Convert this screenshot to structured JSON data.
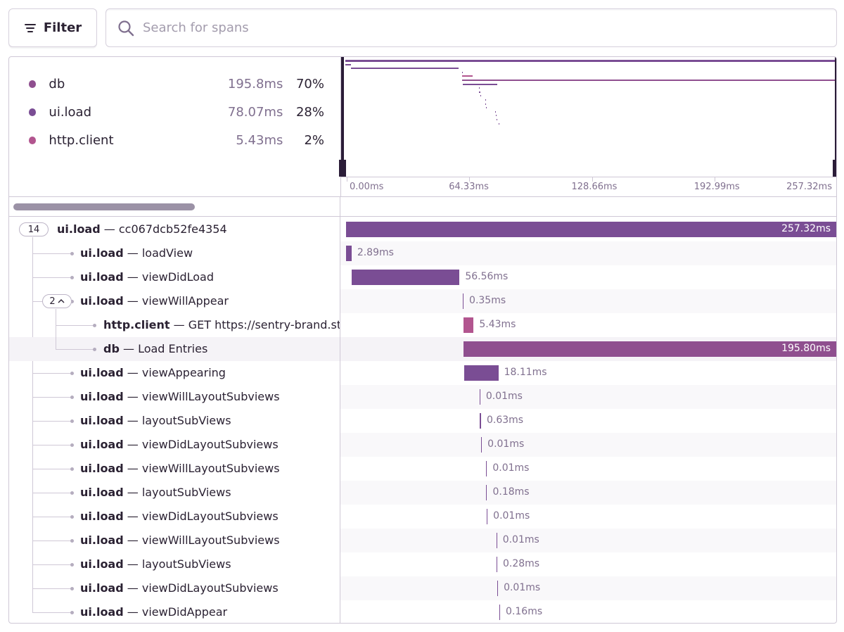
{
  "toolbar": {
    "filter_label": "Filter",
    "search_placeholder": "Search for spans"
  },
  "legend": [
    {
      "name": "db",
      "duration": "195.8ms",
      "percent": "70%",
      "color": "#8f4f8f"
    },
    {
      "name": "ui.load",
      "duration": "78.07ms",
      "percent": "28%",
      "color": "#7a4d94"
    },
    {
      "name": "http.client",
      "duration": "5.43ms",
      "percent": "2%",
      "color": "#b2558f"
    }
  ],
  "axis": {
    "ticks": [
      {
        "label": "0.00ms",
        "value": 0
      },
      {
        "label": "64.33ms",
        "value": 64.33
      },
      {
        "label": "128.66ms",
        "value": 128.66
      },
      {
        "label": "192.99ms",
        "value": 192.99
      },
      {
        "label": "257.32ms",
        "value": 257.32
      }
    ],
    "total": 257.32
  },
  "root": {
    "count": "14",
    "op": "ui.load",
    "sep": " — ",
    "desc": "cc067dcb52fe4354",
    "start": 0,
    "duration": 257.32,
    "duration_label": "257.32ms",
    "color": "#7a4d94"
  },
  "group_badge": "2",
  "spans": [
    {
      "op": "ui.load",
      "desc": "loadView",
      "start": 0.0,
      "duration": 2.89,
      "duration_label": "2.89ms",
      "color": "#7a4d94",
      "depth": 1
    },
    {
      "op": "ui.load",
      "desc": "viewDidLoad",
      "start": 3.0,
      "duration": 56.56,
      "duration_label": "56.56ms",
      "color": "#7a4d94",
      "depth": 1
    },
    {
      "op": "ui.load",
      "desc": "viewWillAppear",
      "start": 61.3,
      "duration": 0.35,
      "duration_label": "0.35ms",
      "color": "#7a4d94",
      "depth": 1,
      "has_children": true
    },
    {
      "op": "http.client",
      "desc": "GET https://sentry-brand.storage.googleapis.com/",
      "start": 61.52,
      "duration": 5.43,
      "duration_label": "5.43ms",
      "color": "#b2558f",
      "depth": 2
    },
    {
      "op": "db",
      "desc": "Load Entries",
      "start": 61.52,
      "duration": 195.8,
      "duration_label": "195.80ms",
      "color": "#8f4f8f",
      "depth": 2,
      "highlight": true
    },
    {
      "op": "ui.load",
      "desc": "viewAppearing",
      "start": 61.85,
      "duration": 18.11,
      "duration_label": "18.11ms",
      "color": "#7a4d94",
      "depth": 1
    },
    {
      "op": "ui.load",
      "desc": "viewWillLayoutSubviews",
      "start": 70.1,
      "duration": 0.01,
      "duration_label": "0.01ms",
      "color": "#7a4d94",
      "depth": 1
    },
    {
      "op": "ui.load",
      "desc": "layoutSubViews",
      "start": 70.25,
      "duration": 0.63,
      "duration_label": "0.63ms",
      "color": "#7a4d94",
      "depth": 1
    },
    {
      "op": "ui.load",
      "desc": "viewDidLayoutSubviews",
      "start": 70.95,
      "duration": 0.01,
      "duration_label": "0.01ms",
      "color": "#7a4d94",
      "depth": 1
    },
    {
      "op": "ui.load",
      "desc": "viewWillLayoutSubviews",
      "start": 73.6,
      "duration": 0.01,
      "duration_label": "0.01ms",
      "color": "#7a4d94",
      "depth": 1
    },
    {
      "op": "ui.load",
      "desc": "layoutSubViews",
      "start": 73.65,
      "duration": 0.18,
      "duration_label": "0.18ms",
      "color": "#7a4d94",
      "depth": 1
    },
    {
      "op": "ui.load",
      "desc": "viewDidLayoutSubviews",
      "start": 73.9,
      "duration": 0.01,
      "duration_label": "0.01ms",
      "color": "#7a4d94",
      "depth": 1
    },
    {
      "op": "ui.load",
      "desc": "viewWillLayoutSubviews",
      "start": 78.9,
      "duration": 0.01,
      "duration_label": "0.01ms",
      "color": "#7a4d94",
      "depth": 1
    },
    {
      "op": "ui.load",
      "desc": "layoutSubViews",
      "start": 79.0,
      "duration": 0.28,
      "duration_label": "0.28ms",
      "color": "#7a4d94",
      "depth": 1
    },
    {
      "op": "ui.load",
      "desc": "viewDidLayoutSubviews",
      "start": 79.4,
      "duration": 0.01,
      "duration_label": "0.01ms",
      "color": "#7a4d94",
      "depth": 1
    },
    {
      "op": "ui.load",
      "desc": "viewDidAppear",
      "start": 80.5,
      "duration": 0.16,
      "duration_label": "0.16ms",
      "color": "#7a4d94",
      "depth": 1
    }
  ]
}
